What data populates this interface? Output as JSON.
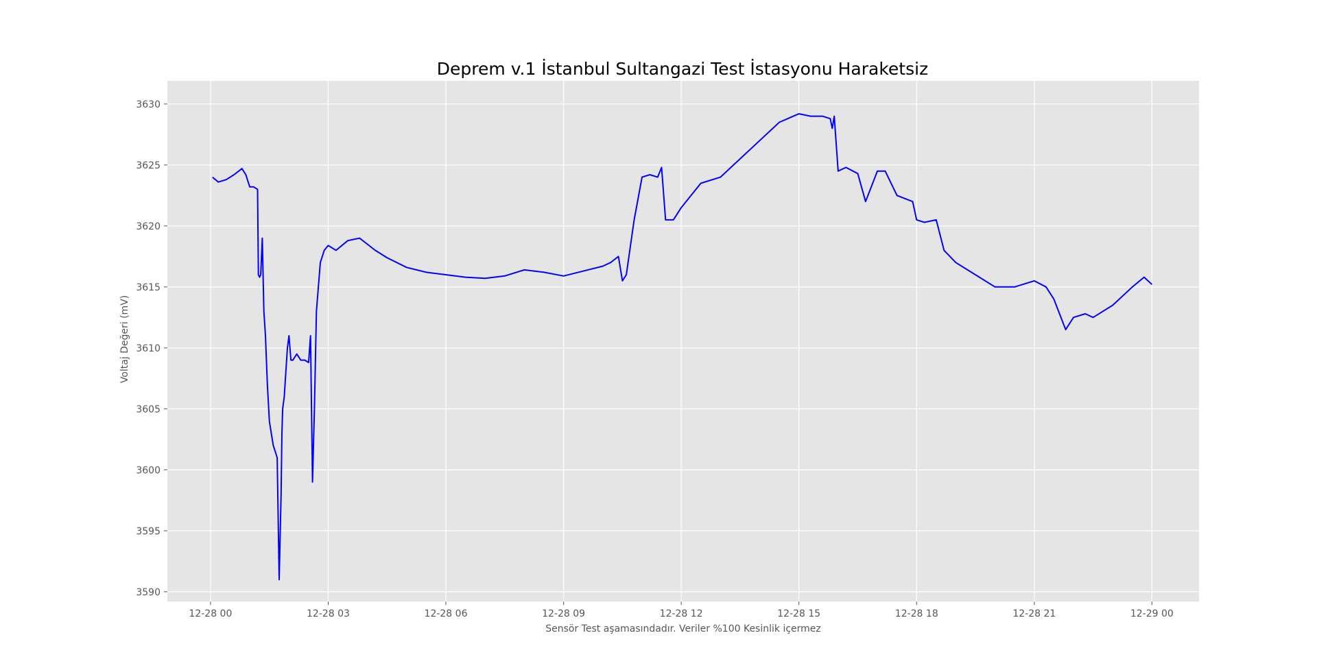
{
  "chart_data": {
    "type": "line",
    "title": "Deprem v.1 İstanbul Sultangazi Test İstasyonu Haraketsiz",
    "xlabel": "Sensör Test aşamasındadır. Veriler %100 Kesinlik içermez",
    "ylabel": "Voltaj Değeri (mV)",
    "x_ticks": [
      "12-28 00",
      "12-28 03",
      "12-28 06",
      "12-28 09",
      "12-28 12",
      "12-28 15",
      "12-28 18",
      "12-28 21",
      "12-29 00"
    ],
    "y_ticks": [
      3590,
      3595,
      3600,
      3605,
      3610,
      3615,
      3620,
      3625,
      3630
    ],
    "xlim_hours": [
      -1.1,
      25.2
    ],
    "ylim": [
      3589.2,
      3631.9
    ],
    "grid": true,
    "line_color": "#0000ff",
    "background_color": "#e5e5e5",
    "series": [
      {
        "x_hours": [
          0.05,
          0.2,
          0.4,
          0.6,
          0.8,
          0.9,
          1.0,
          1.1,
          1.2,
          1.22,
          1.25,
          1.28,
          1.32,
          1.36,
          1.4,
          1.45,
          1.5,
          1.55,
          1.6,
          1.65,
          1.7,
          1.75,
          1.8,
          1.82,
          1.84,
          1.88,
          1.92,
          1.96,
          2.0,
          2.05,
          2.1,
          2.2,
          2.3,
          2.4,
          2.5,
          2.55,
          2.6,
          2.65,
          2.7,
          2.8,
          2.9,
          3.0,
          3.2,
          3.5,
          3.8,
          4.0,
          4.2,
          4.5,
          5.0,
          5.5,
          6.0,
          6.5,
          7.0,
          7.5,
          8.0,
          8.5,
          9.0,
          9.5,
          10.0,
          10.2,
          10.4,
          10.5,
          10.6,
          10.8,
          11.0,
          11.2,
          11.4,
          11.5,
          11.6,
          11.8,
          12.0,
          12.5,
          13.0,
          13.5,
          14.0,
          14.5,
          15.0,
          15.3,
          15.6,
          15.8,
          15.85,
          15.9,
          16.0,
          16.2,
          16.5,
          16.7,
          17.0,
          17.2,
          17.5,
          17.9,
          18.0,
          18.2,
          18.5,
          18.7,
          19.0,
          19.5,
          20.0,
          20.5,
          21.0,
          21.3,
          21.5,
          21.8,
          22.0,
          22.3,
          22.5,
          23.0,
          23.5,
          23.8,
          24.0
        ],
        "values": [
          3624,
          3623.6,
          3623.8,
          3624.2,
          3624.7,
          3624.2,
          3623.2,
          3623.2,
          3623,
          3616,
          3615.8,
          3616,
          3619,
          3613,
          3611,
          3607,
          3604,
          3603,
          3602,
          3601.5,
          3601,
          3591,
          3598,
          3603,
          3605,
          3606,
          3608,
          3610,
          3611,
          3609,
          3609,
          3609.5,
          3609,
          3609,
          3608.8,
          3611,
          3599,
          3605,
          3613,
          3617,
          3618,
          3618.4,
          3618,
          3618.8,
          3619,
          3618.5,
          3618,
          3617.4,
          3616.6,
          3616.2,
          3616,
          3615.8,
          3615.7,
          3615.9,
          3616.4,
          3616.2,
          3615.9,
          3616.3,
          3616.7,
          3617,
          3617.5,
          3615.5,
          3616,
          3620.5,
          3624,
          3624.2,
          3624,
          3624.8,
          3620.5,
          3620.5,
          3621.5,
          3623.5,
          3624,
          3625.5,
          3627,
          3628.5,
          3629.2,
          3629,
          3629,
          3628.8,
          3628,
          3629,
          3624.5,
          3624.8,
          3624.3,
          3622,
          3624.5,
          3624.5,
          3622.5,
          3622,
          3620.5,
          3620.3,
          3620.5,
          3618,
          3617,
          3616,
          3615,
          3615,
          3615.5,
          3615,
          3614,
          3611.5,
          3612.5,
          3612.8,
          3612.5,
          3613.5,
          3615,
          3615.8,
          3615.2
        ]
      }
    ]
  }
}
